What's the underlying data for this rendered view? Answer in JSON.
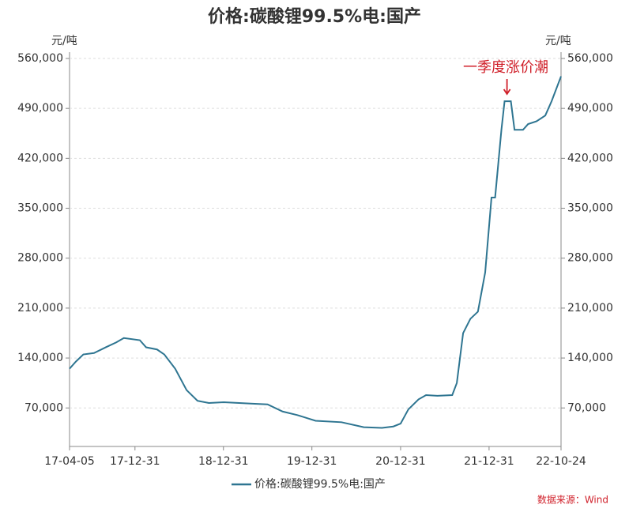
{
  "chart_data": {
    "type": "line",
    "title": "价格:碳酸锂99.5%电:国产",
    "y_label": "元/吨",
    "y2_label": "元/吨",
    "annotation": "一季度涨价潮",
    "annotation_x": "22-03-15",
    "source": "数据来源：Wind",
    "x": [
      "17-04-05",
      "17-05-01",
      "17-06-01",
      "17-07-15",
      "17-09-01",
      "17-10-15",
      "17-11-15",
      "18-01-20",
      "18-02-15",
      "18-04-01",
      "18-05-01",
      "18-06-15",
      "18-08-01",
      "18-09-15",
      "18-11-01",
      "19-01-01",
      "19-05-01",
      "19-07-01",
      "19-09-01",
      "19-11-01",
      "20-01-15",
      "20-05-01",
      "20-08-01",
      "20-10-15",
      "20-12-01",
      "20-12-31",
      "21-02-01",
      "21-03-15",
      "21-04-15",
      "21-06-01",
      "21-08-01",
      "21-08-20",
      "21-09-15",
      "21-10-15",
      "21-11-15",
      "21-12-15",
      "22-01-10",
      "22-01-25",
      "22-02-20",
      "22-03-05",
      "22-03-31",
      "22-04-15",
      "22-05-20",
      "22-06-10",
      "22-07-15",
      "22-08-20",
      "22-09-15",
      "22-10-24"
    ],
    "series": [
      {
        "name": "价格:碳酸锂99.5%电:国产",
        "color": "#2e7591",
        "values": [
          125000,
          135000,
          145000,
          147000,
          155000,
          162000,
          168000,
          165000,
          155000,
          152000,
          145000,
          125000,
          95000,
          80000,
          77000,
          78000,
          76000,
          75000,
          65000,
          60000,
          52000,
          50000,
          43000,
          42000,
          44000,
          48000,
          68000,
          82000,
          88000,
          87000,
          88000,
          105000,
          175000,
          195000,
          205000,
          260000,
          365000,
          365000,
          460000,
          500000,
          500000,
          460000,
          460000,
          468000,
          472000,
          480000,
          500000,
          535000
        ]
      }
    ],
    "xlim": [
      "17-04-05",
      "22-10-24"
    ],
    "xticks": [
      "17-04-05",
      "17-12-31",
      "18-12-31",
      "19-12-31",
      "20-12-31",
      "21-12-31",
      "22-10-24"
    ],
    "ylim": [
      16000,
      560000
    ],
    "yticks": [
      {
        "value": 70000,
        "label": "70,000"
      },
      {
        "value": 140000,
        "label": "140,000"
      },
      {
        "value": 210000,
        "label": "210,000"
      },
      {
        "value": 280000,
        "label": "280,000"
      },
      {
        "value": 350000,
        "label": "350,000"
      },
      {
        "value": 420000,
        "label": "420,000"
      },
      {
        "value": 490000,
        "label": "490,000"
      },
      {
        "value": 560000,
        "label": "560,000"
      }
    ],
    "grid": true
  }
}
